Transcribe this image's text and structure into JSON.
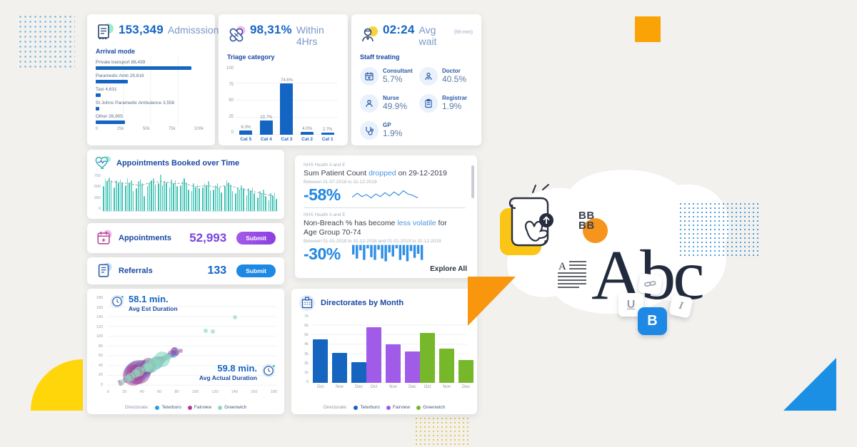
{
  "colors": {
    "primary_blue": "#1464c4",
    "navy_label": "#1a49a3",
    "teal": "#3ec3b4",
    "purple": "#8a3fe0",
    "link_blue": "#4a97e2",
    "submit_blue": "#1e88e5",
    "orange": "#f8960d",
    "yellow": "#ffd60a"
  },
  "cards": {
    "admissions": {
      "value": "153,349",
      "label": "Admisssions",
      "section_title": "Arrival mode"
    },
    "within4hrs": {
      "value": "98,31%",
      "label": "Within 4Hrs",
      "section_title": "Triage category"
    },
    "avg_wait": {
      "value": "02:24",
      "label": "Avg wait",
      "unit": "(hh:mm)",
      "section_title": "Staff treating",
      "staff": [
        {
          "label": "Consultant",
          "value": "5.7%"
        },
        {
          "label": "Doctor",
          "value": "40.5%"
        },
        {
          "label": "Nurse",
          "value": "49.9%"
        },
        {
          "label": "Registrar",
          "value": "1.9%"
        },
        {
          "label": "GP",
          "value": "1.9%"
        }
      ]
    },
    "booked_over_time": {
      "title": "Appointments Booked over Time"
    },
    "appointments": {
      "label": "Appointments",
      "value": "52,993",
      "submit_label": "Submit"
    },
    "referrals": {
      "label": "Referrals",
      "value": "133",
      "submit_label": "Submit"
    },
    "insights": {
      "items": [
        {
          "source": "NHS Health A and E",
          "title_parts": [
            {
              "t": "Sum Patient Count "
            },
            {
              "t": "dropped",
              "hl": true
            },
            {
              "t": " on 29-12-2019"
            }
          ],
          "range": "Between 01-07-2018 to 31-12-2019",
          "delta": "-58%"
        },
        {
          "source": "NHS Health A and E",
          "title_parts": [
            {
              "t": "Non-Breach % has become "
            },
            {
              "t": "less volatile",
              "hl": true
            },
            {
              "t": " for Age Group 70-74"
            }
          ],
          "range": "Between 01-01-2018 to 31-12-2018 and 01-01-2019 to 31-12-2019",
          "delta": "-30%"
        }
      ],
      "footer": "Explore All"
    },
    "duration": {
      "est_value": "58.1 min.",
      "est_label": "Avg Est Duration",
      "actual_value": "59.8 min.",
      "actual_label": "Avg Actual Duration"
    },
    "directorates": {
      "title": "Directorates by Month"
    }
  },
  "decor": {
    "bb_line1": "BB",
    "bb_line2": "BB",
    "abc": "Abc",
    "para_letter": "A",
    "key_u": "U",
    "key_b": "B",
    "key_i": "I"
  },
  "chart_data": [
    {
      "id": "arrival_mode",
      "type": "bar",
      "orientation": "horizontal",
      "title": "Arrival mode",
      "categories": [
        "Private transport",
        "Paramedic Amb",
        "Taxi",
        "St Johns Paramedic Ambulance",
        "Other"
      ],
      "values": [
        88439,
        29816,
        4631,
        3558,
        26905
      ],
      "value_labels": [
        "88,439",
        "29,816",
        "4,631",
        "3,558",
        "26,905"
      ],
      "xlim": [
        0,
        100000
      ],
      "xticks": [
        "0",
        "25k",
        "50k",
        "75k",
        "100k"
      ],
      "color": "#1464c4"
    },
    {
      "id": "triage",
      "type": "bar",
      "title": "Triage category",
      "categories": [
        "Cat 5",
        "Cat 4",
        "Cat 3",
        "Cat 2",
        "Cat 1"
      ],
      "values": [
        6.3,
        20.7,
        74.6,
        4.0,
        2.7
      ],
      "value_labels": [
        "6.3%",
        "20.7%",
        "74.6%",
        "4.0%",
        "2.7%"
      ],
      "ylim": [
        0,
        100
      ],
      "yticks": [
        "100",
        "75",
        "50",
        "25",
        "0"
      ],
      "color": "#1464c4"
    },
    {
      "id": "appointments_over_time",
      "type": "bar",
      "title": "Appointments Booked over Time",
      "ylim": [
        0,
        750
      ],
      "yticks": [
        "750",
        "500",
        "250",
        "0"
      ],
      "groups": [
        [
          500,
          650,
          600,
          680,
          620
        ],
        [
          480,
          620,
          560,
          640,
          580
        ],
        [
          520,
          660,
          580,
          620,
          400
        ],
        [
          460,
          600,
          640,
          560,
          300
        ],
        [
          500,
          580,
          620,
          660,
          540
        ],
        [
          560,
          730,
          520,
          600,
          580
        ],
        [
          480,
          640,
          560,
          620,
          500
        ],
        [
          520,
          600,
          660,
          580,
          440
        ],
        [
          400,
          560,
          480,
          540,
          460
        ],
        [
          480,
          560,
          520,
          600,
          420
        ],
        [
          440,
          520,
          560,
          480,
          380
        ],
        [
          500,
          620,
          580,
          540,
          400
        ],
        [
          360,
          480,
          440,
          520,
          460
        ],
        [
          320,
          460,
          420,
          480,
          360
        ],
        [
          280,
          400,
          360,
          440,
          300
        ],
        [
          220,
          360,
          320,
          380,
          240
        ]
      ],
      "color": "#3ec3b4",
      "trend_color": "#98a0ad"
    },
    {
      "id": "insight_spark_line",
      "type": "line",
      "color": "#3d8fe0",
      "points": [
        [
          0,
          15
        ],
        [
          8,
          9
        ],
        [
          15,
          14
        ],
        [
          22,
          11
        ],
        [
          29,
          16
        ],
        [
          36,
          10
        ],
        [
          43,
          14
        ],
        [
          50,
          8
        ],
        [
          57,
          13
        ],
        [
          64,
          7
        ],
        [
          71,
          12
        ],
        [
          78,
          5
        ],
        [
          85,
          10
        ],
        [
          92,
          12
        ],
        [
          100,
          16
        ]
      ]
    },
    {
      "id": "insight_spark_bars",
      "type": "bar",
      "color": "#2f8fe5",
      "values": [
        14,
        20,
        8,
        22,
        5,
        18,
        22,
        7,
        20,
        24,
        11,
        17,
        5,
        22,
        15,
        24,
        9,
        19,
        13,
        22
      ]
    },
    {
      "id": "duration_scatter",
      "type": "scatter",
      "xlim": [
        0,
        180
      ],
      "ylim": [
        0,
        180
      ],
      "xticks": [
        "0",
        "20",
        "40",
        "60",
        "80",
        "100",
        "120",
        "140",
        "160",
        "180"
      ],
      "yticks": [
        "180",
        "160",
        "140",
        "120",
        "100",
        "80",
        "60",
        "40",
        "20",
        "0"
      ],
      "legend_label": "Directorate:",
      "series": [
        {
          "name": "Teterboro",
          "color": "#22a0e8",
          "opacity": 0.55,
          "points": [
            [
              30,
              26,
              16
            ],
            [
              33,
              30,
              9
            ],
            [
              38,
              33,
              13
            ],
            [
              42,
              38,
              10
            ],
            [
              45,
              41,
              7
            ],
            [
              48,
              44,
              6
            ],
            [
              52,
              47,
              9
            ],
            [
              55,
              51,
              6
            ],
            [
              58,
              53,
              5
            ],
            [
              60,
              55,
              4
            ],
            [
              65,
              61,
              4
            ],
            [
              70,
              64,
              5
            ],
            [
              72,
              69,
              6
            ],
            [
              40,
              31,
              7
            ],
            [
              50,
              45,
              5
            ],
            [
              62,
              56,
              4
            ],
            [
              35,
              29,
              5
            ],
            [
              47,
              39,
              5
            ],
            [
              68,
              63,
              3
            ],
            [
              26,
              20,
              4
            ]
          ]
        },
        {
          "name": "Fairview",
          "color": "#b13a92",
          "opacity": 0.5,
          "points": [
            [
              28,
              22,
              15
            ],
            [
              31,
              26,
              11
            ],
            [
              33,
              28,
              17
            ],
            [
              36,
              30,
              8
            ],
            [
              44,
              40,
              11
            ],
            [
              47,
              43,
              8
            ],
            [
              52,
              48,
              5
            ],
            [
              57,
              52,
              4
            ],
            [
              63,
              58,
              4
            ],
            [
              68,
              65,
              5
            ],
            [
              73,
              67,
              4
            ],
            [
              20,
              12,
              4
            ],
            [
              14,
              5,
              3
            ],
            [
              24,
              16,
              5
            ],
            [
              78,
              71,
              3
            ],
            [
              71,
              72,
              4
            ],
            [
              55,
              50,
              6
            ],
            [
              13,
              9,
              2
            ]
          ]
        },
        {
          "name": "Greenwich",
          "color": "#8fd8bf",
          "opacity": 0.65,
          "points": [
            [
              16,
              8,
              4
            ],
            [
              25,
              18,
              6
            ],
            [
              34,
              29,
              7
            ],
            [
              41,
              36,
              6
            ],
            [
              50,
              45,
              8
            ],
            [
              56,
              50,
              5
            ],
            [
              47,
              40,
              10
            ],
            [
              30,
              24,
              6
            ],
            [
              62,
              56,
              4
            ],
            [
              58,
              54,
              11
            ],
            [
              22,
              15,
              5
            ],
            [
              135,
              139,
              3
            ],
            [
              104,
              112,
              3
            ],
            [
              112,
              111,
              3
            ],
            [
              66,
              60,
              4
            ],
            [
              44,
              38,
              6
            ]
          ]
        }
      ]
    },
    {
      "id": "directorates_by_month",
      "type": "bar",
      "grouped": true,
      "title": "Directorates by Month",
      "categories": [
        "Oct",
        "Nov",
        "Dec"
      ],
      "ylim": [
        0,
        7000
      ],
      "yticks": [
        "7k",
        "6k",
        "5k",
        "4k",
        "3k",
        "2k",
        "1k",
        "0"
      ],
      "legend_label": "Directorate:",
      "series": [
        {
          "name": "Teterboro",
          "color": "#1565c0",
          "values": [
            4550,
            3100,
            2150
          ]
        },
        {
          "name": "Fairview",
          "color": "#a05ce8",
          "values": [
            5800,
            4000,
            3300
          ]
        },
        {
          "name": "Greenwich",
          "color": "#76b82a",
          "values": [
            5200,
            3550,
            2400
          ]
        }
      ]
    }
  ]
}
